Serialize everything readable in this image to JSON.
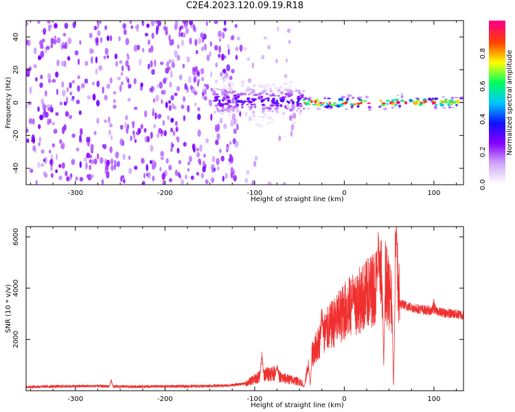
{
  "title": "C2E4.2023.120.09.19.R18",
  "colors": {
    "snr_line": "#f03030",
    "axis": "#000000",
    "background": "#ffffff",
    "spectrogram_noise": "#7a00f0",
    "spectrogram_ridge_core": "#e0202a"
  },
  "chart_data": [
    {
      "type": "heatmap",
      "xlabel": "Height of straight line (km)",
      "ylabel": "Frequency (Hz)",
      "xlim": [
        -355,
        133
      ],
      "ylim": [
        -50,
        50
      ],
      "xticks": [
        -300,
        -200,
        -100,
        0,
        100
      ],
      "yticks": [
        -40,
        -20,
        0,
        20,
        40
      ],
      "grid": false,
      "colorbar": {
        "label": "Normalized spectral amplitude",
        "range": [
          0,
          1
        ],
        "ticks": [
          "0.0",
          "0.2",
          "0.4",
          "0.6",
          "0.8"
        ],
        "colormap": [
          "#ffffff",
          "#d0a8f8",
          "#8800ff",
          "#1010ff",
          "#00c8ff",
          "#00ff60",
          "#ffff00",
          "#ff4000",
          "#ff0080"
        ]
      },
      "regions": [
        {
          "feature": "broadband noise",
          "x_range": [
            -355,
            -115
          ],
          "freq_range": [
            -50,
            50
          ],
          "amplitude": 0.1
        },
        {
          "feature": "sparse noise",
          "x_range": [
            -115,
            -55
          ],
          "freq_range": [
            -50,
            50
          ],
          "amplitude": 0.04
        },
        {
          "feature": "spread carrier",
          "x_range": [
            -145,
            -45
          ],
          "freq_range": [
            -8,
            10
          ],
          "amplitude": 0.3
        },
        {
          "feature": "carrier",
          "x_range": [
            -45,
            133
          ],
          "freq_range": [
            -3,
            3
          ],
          "amplitude": 0.9
        }
      ]
    },
    {
      "type": "line",
      "xlabel": "Height of straight line (km)",
      "ylabel": "SNR (10 * v/v)",
      "xlim": [
        -355,
        133
      ],
      "ylim": [
        0,
        6400
      ],
      "xticks": [
        -300,
        -200,
        -100,
        0,
        100
      ],
      "yticks": [
        2000,
        4000,
        6000
      ],
      "grid": false,
      "series": [
        {
          "x": [
            -355,
            -320,
            -280,
            -240,
            -200,
            -160,
            -130,
            -110,
            -100,
            -90,
            -80,
            -70,
            -60,
            -50,
            -45,
            -40,
            -35,
            -30,
            -25,
            -20,
            -10,
            0,
            10,
            20,
            30,
            40,
            45,
            50,
            55,
            58,
            62,
            70,
            80,
            90,
            100,
            110,
            120,
            133
          ],
          "y": [
            150,
            170,
            180,
            160,
            170,
            180,
            200,
            280,
            450,
            620,
            700,
            500,
            430,
            350,
            250,
            900,
            1450,
            1800,
            2050,
            2350,
            2700,
            3100,
            3350,
            3600,
            3900,
            4300,
            4500,
            3700,
            3250,
            5200,
            3400,
            3300,
            3200,
            3150,
            3100,
            3050,
            3000,
            2950
          ],
          "peaks": [
            [
              -260,
              420
            ],
            [
              -92,
              1550
            ],
            [
              -75,
              1050
            ],
            [
              -25,
              3300
            ],
            [
              10,
              4100
            ],
            [
              38,
              6200
            ],
            [
              57,
              6350
            ],
            [
              100,
              3450
            ]
          ],
          "dips": [
            [
              -45,
              150
            ],
            [
              -38,
              200
            ],
            [
              44,
              1000
            ],
            [
              55,
              150
            ]
          ]
        }
      ]
    }
  ]
}
